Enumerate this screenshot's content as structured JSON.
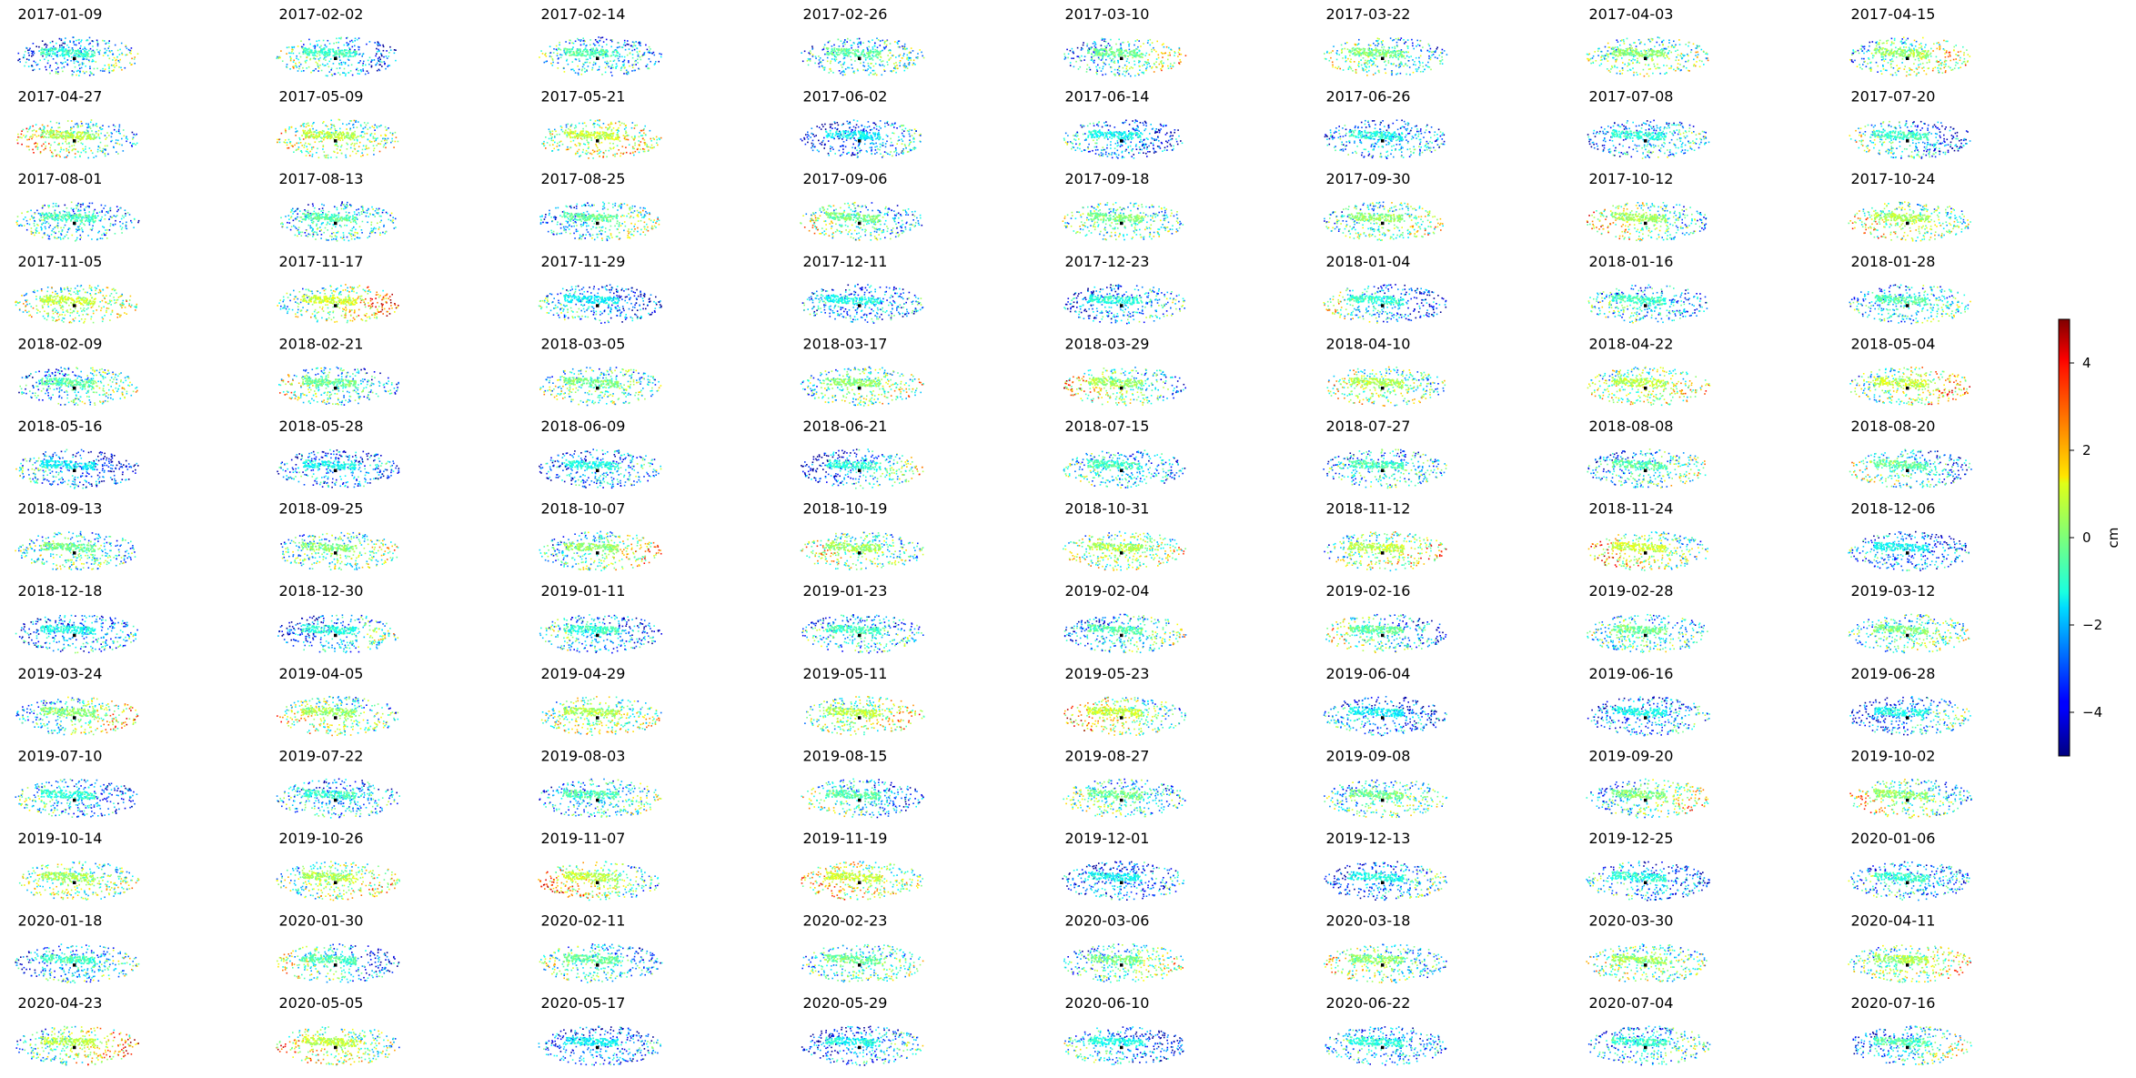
{
  "chart_data": {
    "type": "scatter",
    "layout": "small-multiples",
    "grid": false,
    "axes": "off",
    "rows": 13,
    "cols": 8,
    "colormap": "jet",
    "panels": [
      "2017-01-09",
      "2017-02-02",
      "2017-02-14",
      "2017-02-26",
      "2017-03-10",
      "2017-03-22",
      "2017-04-03",
      "2017-04-15",
      "2017-04-27",
      "2017-05-09",
      "2017-05-21",
      "2017-06-02",
      "2017-06-14",
      "2017-06-26",
      "2017-07-08",
      "2017-07-20",
      "2017-08-01",
      "2017-08-13",
      "2017-08-25",
      "2017-09-06",
      "2017-09-18",
      "2017-09-30",
      "2017-10-12",
      "2017-10-24",
      "2017-11-05",
      "2017-11-17",
      "2017-11-29",
      "2017-12-11",
      "2017-12-23",
      "2018-01-04",
      "2018-01-16",
      "2018-01-28",
      "2018-02-09",
      "2018-02-21",
      "2018-03-05",
      "2018-03-17",
      "2018-03-29",
      "2018-04-10",
      "2018-04-22",
      "2018-05-04",
      "2018-05-16",
      "2018-05-28",
      "2018-06-09",
      "2018-06-21",
      "2018-07-15",
      "2018-07-27",
      "2018-08-08",
      "2018-08-20",
      "2018-09-13",
      "2018-09-25",
      "2018-10-07",
      "2018-10-19",
      "2018-10-31",
      "2018-11-12",
      "2018-11-24",
      "2018-12-06",
      "2018-12-18",
      "2018-12-30",
      "2019-01-11",
      "2019-01-23",
      "2019-02-04",
      "2019-02-16",
      "2019-02-28",
      "2019-03-12",
      "2019-03-24",
      "2019-04-05",
      "2019-04-29",
      "2019-05-11",
      "2019-05-23",
      "2019-06-04",
      "2019-06-16",
      "2019-06-28",
      "2019-07-10",
      "2019-07-22",
      "2019-08-03",
      "2019-08-15",
      "2019-08-27",
      "2019-09-08",
      "2019-09-20",
      "2019-10-02",
      "2019-10-14",
      "2019-10-26",
      "2019-11-07",
      "2019-11-19",
      "2019-12-01",
      "2019-12-13",
      "2019-12-25",
      "2020-01-06",
      "2020-01-18",
      "2020-01-30",
      "2020-02-11",
      "2020-02-23",
      "2020-03-06",
      "2020-03-18",
      "2020-03-30",
      "2020-04-11",
      "2020-04-23",
      "2020-05-05",
      "2020-05-17",
      "2020-05-29",
      "2020-06-10",
      "2020-06-22",
      "2020-07-04",
      "2020-07-16"
    ],
    "colorbar": {
      "label": "cm",
      "range": [
        -5,
        5
      ],
      "ticks": [
        4,
        2,
        0,
        -2,
        -4
      ],
      "tick_labels": [
        "4",
        "2",
        "0",
        "−2",
        "−4"
      ]
    }
  }
}
